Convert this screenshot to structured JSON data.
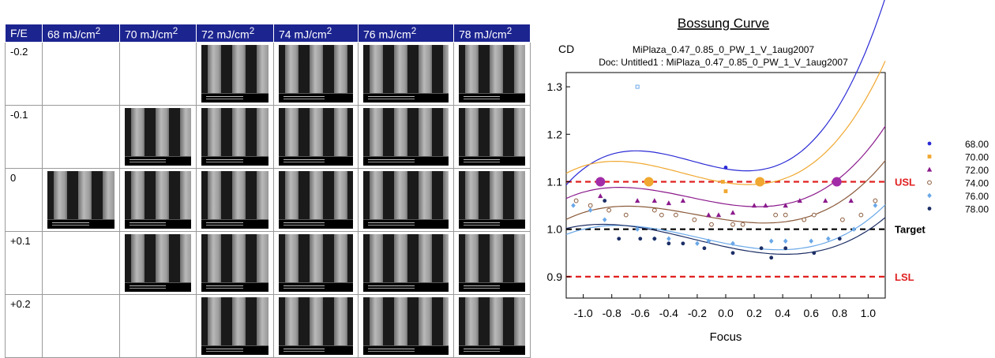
{
  "matrix": {
    "corner": "F/E",
    "columns": [
      {
        "value": "68 mJ/cm",
        "sup": "2"
      },
      {
        "value": "70 mJ/cm",
        "sup": "2"
      },
      {
        "value": "72 mJ/cm",
        "sup": "2"
      },
      {
        "value": "74 mJ/cm",
        "sup": "2"
      },
      {
        "value": "76 mJ/cm",
        "sup": "2"
      },
      {
        "value": "78 mJ/cm",
        "sup": "2"
      }
    ],
    "rows": [
      {
        "label": "-0.2",
        "filled": [
          false,
          false,
          true,
          true,
          true,
          true
        ]
      },
      {
        "label": "-0.1",
        "filled": [
          false,
          true,
          true,
          true,
          true,
          true
        ]
      },
      {
        "label": "0",
        "filled": [
          true,
          true,
          true,
          true,
          true,
          true
        ]
      },
      {
        "label": "+0.1",
        "filled": [
          false,
          true,
          true,
          true,
          true,
          true
        ]
      },
      {
        "label": "+0.2",
        "filled": [
          false,
          false,
          true,
          true,
          true,
          true
        ]
      }
    ]
  },
  "chart_data": {
    "type": "scatter",
    "title": "Bossung Curve",
    "subtitle1": "MiPlaza_0.47_0.85_0_PW_1_V_1aug2007",
    "subtitle2": "Doc: Untitled1 : MiPlaza_0.47_0.85_0_PW_1_V_1aug2007",
    "xlabel": "Focus",
    "ylabel": "CD",
    "xlim": [
      -1.12,
      1.12
    ],
    "ylim": [
      0.855,
      1.33
    ],
    "xticks": [
      "-1.0",
      "-0.8",
      "-0.6",
      "-0.4",
      "-0.2",
      "0.0",
      "0.2",
      "0.4",
      "0.6",
      "0.8",
      "1.0"
    ],
    "xtick_values": [
      -1.0,
      -0.8,
      -0.6,
      -0.4,
      -0.2,
      0.0,
      0.2,
      0.4,
      0.6,
      0.8,
      1.0
    ],
    "yticks": [
      "0.9",
      "1.0",
      "1.1",
      "1.2",
      "1.3"
    ],
    "ytick_values": [
      0.9,
      1.0,
      1.1,
      1.2,
      1.3
    ],
    "reference_lines": [
      {
        "name": "USL",
        "y": 1.1,
        "color": "#e02020"
      },
      {
        "name": "Target",
        "y": 1.0,
        "color": "#000000"
      },
      {
        "name": "LSL",
        "y": 0.9,
        "color": "#e02020"
      }
    ],
    "window_points": {
      "color_a": "#a22ca8",
      "color_b": "#f0a830",
      "points": [
        {
          "x": -0.88,
          "y": 1.1,
          "c": "a"
        },
        {
          "x": -0.54,
          "y": 1.1,
          "c": "b"
        },
        {
          "x": 0.24,
          "y": 1.1,
          "c": "b"
        },
        {
          "x": 0.78,
          "y": 1.1,
          "c": "a"
        }
      ]
    },
    "series": [
      {
        "name": "68.00",
        "color": "#2b2bd6",
        "marker": "circle",
        "fit": [
          1.127,
          -0.05,
          0.13,
          0.18
        ],
        "points": [
          [
            0.0,
            1.13
          ]
        ]
      },
      {
        "name": "70.00",
        "color": "#f0a830",
        "marker": "square",
        "fit": [
          1.098,
          -0.045,
          0.11,
          0.12
        ],
        "points": [
          [
            -0.62,
            1.3
          ],
          [
            -0.02,
            1.1
          ],
          [
            0.0,
            1.08
          ]
        ]
      },
      {
        "name": "72.00",
        "color": "#8b1a8c",
        "marker": "triangle",
        "fit": [
          1.053,
          -0.045,
          0.07,
          0.09
        ],
        "points": [
          [
            -0.88,
            1.07
          ],
          [
            -0.62,
            1.06
          ],
          [
            -0.5,
            1.06
          ],
          [
            -0.4,
            1.055
          ],
          [
            -0.3,
            1.06
          ],
          [
            -0.12,
            1.03
          ],
          [
            -0.05,
            1.03
          ],
          [
            0.05,
            1.035
          ],
          [
            0.2,
            1.05
          ],
          [
            0.28,
            1.05
          ],
          [
            0.42,
            1.05
          ],
          [
            0.52,
            1.06
          ],
          [
            0.7,
            1.06
          ],
          [
            0.88,
            1.06
          ]
        ]
      },
      {
        "name": "74.00",
        "color": "#8a5a3a",
        "marker": "hollow",
        "fit": [
          1.02,
          -0.045,
          0.05,
          0.08
        ],
        "points": [
          [
            -1.05,
            1.06
          ],
          [
            -0.95,
            1.05
          ],
          [
            -0.82,
            1.04
          ],
          [
            -0.7,
            1.03
          ],
          [
            -0.5,
            1.04
          ],
          [
            -0.45,
            1.03
          ],
          [
            -0.35,
            1.03
          ],
          [
            -0.22,
            1.02
          ],
          [
            -0.1,
            1.01
          ],
          [
            0.05,
            1.01
          ],
          [
            0.12,
            1.01
          ],
          [
            0.35,
            1.03
          ],
          [
            0.42,
            1.03
          ],
          [
            0.55,
            1.02
          ],
          [
            0.62,
            1.03
          ],
          [
            0.82,
            1.02
          ],
          [
            0.95,
            1.03
          ],
          [
            1.05,
            1.06
          ]
        ]
      },
      {
        "name": "76.00",
        "color": "#6aa8e8",
        "marker": "diamond",
        "fit": [
          0.97,
          -0.06,
          0.04,
          0.07
        ],
        "points": [
          [
            -1.07,
            1.05
          ],
          [
            -0.95,
            1.04
          ],
          [
            -0.85,
            1.02
          ],
          [
            -0.62,
            1.0
          ],
          [
            -0.5,
            0.98
          ],
          [
            -0.4,
            0.98
          ],
          [
            -0.2,
            0.97
          ],
          [
            -0.12,
            0.975
          ],
          [
            0.05,
            0.97
          ],
          [
            0.32,
            0.975
          ],
          [
            0.42,
            0.975
          ],
          [
            0.6,
            0.975
          ],
          [
            0.72,
            0.98
          ],
          [
            0.9,
            1.0
          ],
          [
            1.05,
            1.05
          ]
        ]
      },
      {
        "name": "78.00",
        "color": "#1c2e66",
        "marker": "circle",
        "fit": [
          0.963,
          -0.065,
          0.04,
          0.06
        ],
        "points": [
          [
            -0.85,
            1.06
          ],
          [
            -0.75,
            0.98
          ],
          [
            -0.6,
            0.98
          ],
          [
            -0.5,
            0.98
          ],
          [
            -0.4,
            0.97
          ],
          [
            -0.3,
            0.97
          ],
          [
            -0.15,
            0.96
          ],
          [
            0.05,
            0.95
          ],
          [
            0.25,
            0.96
          ],
          [
            0.32,
            0.94
          ],
          [
            0.42,
            0.96
          ],
          [
            0.62,
            0.95
          ],
          [
            0.8,
            0.98
          ]
        ]
      }
    ]
  }
}
